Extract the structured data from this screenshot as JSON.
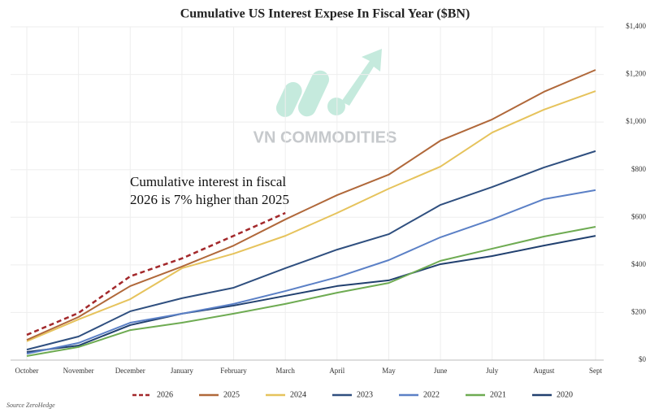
{
  "chart_data": {
    "type": "line",
    "title": "Cumulative US Interest Expese In Fiscal Year ($BN)",
    "annotation": "Cumulative interest in fiscal\n2026 is 7% higher than 2025",
    "watermark": "VN COMMODITIES",
    "source": "Source ZeroHedge",
    "categories": [
      "October",
      "November",
      "December",
      "January",
      "February",
      "March",
      "April",
      "May",
      "June",
      "July",
      "August",
      "Sept"
    ],
    "ylim": [
      0,
      1400
    ],
    "yticks": [
      {
        "value": 0,
        "label": "$0"
      },
      {
        "value": 200,
        "label": "$200"
      },
      {
        "value": 400,
        "label": "$400"
      },
      {
        "value": 600,
        "label": "$600"
      },
      {
        "value": 800,
        "label": "$800"
      },
      {
        "value": 1000,
        "label": "$1,000"
      },
      {
        "value": 1200,
        "label": "$1,200"
      },
      {
        "value": 1400,
        "label": "$1,400"
      }
    ],
    "grid": true,
    "legend": "bottom",
    "series": [
      {
        "name": "2026",
        "color": "#a3282b",
        "dashed": true,
        "values": [
          106,
          198,
          352,
          427,
          522,
          618,
          null,
          null,
          null,
          null,
          null,
          null
        ]
      },
      {
        "name": "2025",
        "color": "#b0683a",
        "values": [
          85,
          181,
          311,
          393,
          481,
          591,
          693,
          779,
          922,
          1011,
          1127,
          1219
        ]
      },
      {
        "name": "2024",
        "color": "#e6c35c",
        "values": [
          79,
          171,
          256,
          386,
          447,
          522,
          618,
          720,
          813,
          956,
          1052,
          1130
        ]
      },
      {
        "name": "2023",
        "color": "#2f4f7f",
        "values": [
          44,
          99,
          205,
          260,
          304,
          386,
          464,
          529,
          652,
          727,
          809,
          878
        ]
      },
      {
        "name": "2022",
        "color": "#5b80c6",
        "values": [
          27,
          72,
          157,
          195,
          236,
          290,
          348,
          420,
          516,
          591,
          676,
          714
        ]
      },
      {
        "name": "2021",
        "color": "#6eab52",
        "values": [
          17,
          55,
          126,
          157,
          195,
          236,
          283,
          324,
          417,
          468,
          519,
          560
        ]
      },
      {
        "name": "2020",
        "color": "#21406f",
        "values": [
          34,
          61,
          147,
          195,
          229,
          270,
          311,
          335,
          403,
          437,
          481,
          522
        ]
      }
    ]
  }
}
